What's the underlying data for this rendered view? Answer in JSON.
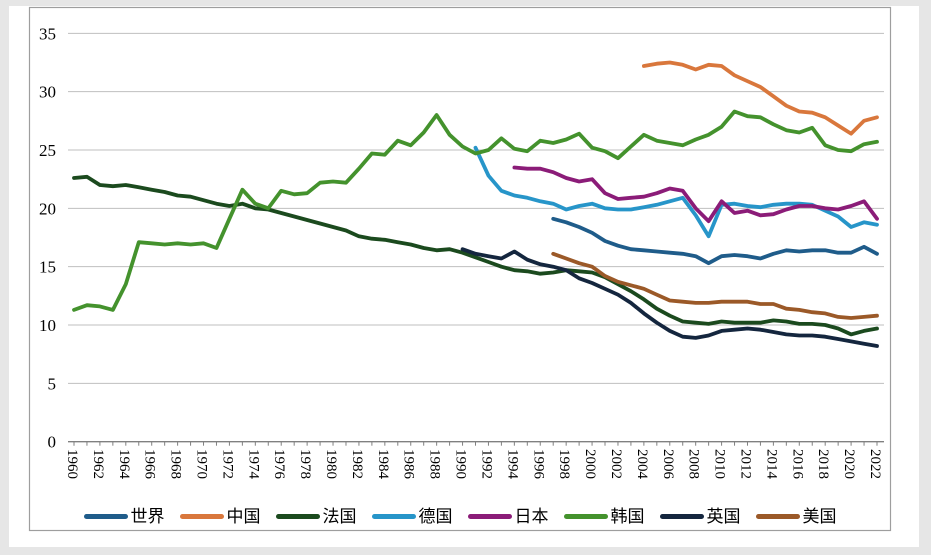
{
  "chart_data": {
    "type": "line",
    "title": "",
    "xlabel": "",
    "ylabel": "",
    "grid": true,
    "legend_position": "bottom",
    "y_axis": {
      "min": 0,
      "max": 35,
      "tick_interval": 5,
      "tick_labels": [
        0,
        5,
        10,
        15,
        20,
        25,
        30,
        35
      ]
    },
    "x_axis": {
      "min": 1960,
      "max": 2022,
      "tick_interval": 2,
      "tick_labels": [
        1960,
        1962,
        1964,
        1966,
        1968,
        1970,
        1972,
        1974,
        1976,
        1978,
        1980,
        1982,
        1984,
        1986,
        1988,
        1990,
        1992,
        1994,
        1996,
        1998,
        2000,
        2002,
        2004,
        2006,
        2008,
        2010,
        2012,
        2014,
        2016,
        2018,
        2020,
        2022
      ]
    },
    "series": [
      {
        "name": "世界",
        "name_en": "world",
        "color": "#1F5C8A",
        "start_year": 1997,
        "values": [
          19.1,
          18.8,
          18.4,
          17.9,
          17.2,
          16.8,
          16.5,
          16.4,
          16.3,
          16.2,
          16.1,
          15.9,
          15.3,
          15.9,
          16.0,
          15.9,
          15.7,
          16.1,
          16.4,
          16.3,
          16.4,
          16.4,
          16.2,
          16.2,
          16.7,
          16.1
        ]
      },
      {
        "name": "中国",
        "name_en": "china",
        "color": "#D9773C",
        "start_year": 2004,
        "values": [
          32.2,
          32.4,
          32.5,
          32.3,
          31.9,
          32.3,
          32.2,
          31.4,
          30.9,
          30.4,
          29.6,
          28.8,
          28.3,
          28.2,
          27.8,
          27.1,
          26.4,
          27.5,
          27.8
        ]
      },
      {
        "name": "法国",
        "name_en": "france",
        "color": "#1B4A1E",
        "start_year": 1960,
        "values": [
          22.6,
          22.7,
          22.0,
          21.9,
          22.0,
          21.8,
          21.6,
          21.4,
          21.1,
          21.0,
          20.7,
          20.4,
          20.2,
          20.4,
          20.0,
          19.9,
          19.6,
          19.3,
          19.0,
          18.7,
          18.4,
          18.1,
          17.6,
          17.4,
          17.3,
          17.1,
          16.9,
          16.6,
          16.4,
          16.5,
          16.2,
          15.8,
          15.4,
          15.0,
          14.7,
          14.6,
          14.4,
          14.5,
          14.7,
          14.6,
          14.5,
          14.1,
          13.5,
          12.9,
          12.2,
          11.4,
          10.8,
          10.3,
          10.2,
          10.1,
          10.3,
          10.2,
          10.2,
          10.2,
          10.4,
          10.3,
          10.1,
          10.1,
          10.0,
          9.7,
          9.2,
          9.5,
          9.7
        ]
      },
      {
        "name": "德国",
        "name_en": "germany",
        "color": "#2795C9",
        "start_year": 1991,
        "values": [
          25.2,
          22.8,
          21.5,
          21.1,
          20.9,
          20.6,
          20.4,
          19.9,
          20.2,
          20.4,
          20.0,
          19.9,
          19.9,
          20.1,
          20.3,
          20.6,
          20.9,
          19.4,
          17.6,
          20.3,
          20.4,
          20.2,
          20.1,
          20.3,
          20.4,
          20.4,
          20.3,
          19.8,
          19.3,
          18.4,
          18.8,
          18.6
        ]
      },
      {
        "name": "日本",
        "name_en": "japan",
        "color": "#8B1C78",
        "start_year": 1994,
        "values": [
          23.5,
          23.4,
          23.4,
          23.1,
          22.6,
          22.3,
          22.5,
          21.3,
          20.8,
          20.9,
          21.0,
          21.3,
          21.7,
          21.5,
          20.0,
          18.9,
          20.6,
          19.6,
          19.8,
          19.4,
          19.5,
          19.9,
          20.2,
          20.2,
          20.0,
          19.9,
          20.2,
          20.6,
          19.1
        ]
      },
      {
        "name": "韩国",
        "name_en": "korea",
        "color": "#44922D",
        "start_year": 1960,
        "values": [
          11.3,
          11.7,
          11.6,
          11.3,
          13.5,
          17.1,
          17.0,
          16.9,
          17.0,
          16.9,
          17.0,
          16.6,
          19.1,
          21.6,
          20.4,
          20.0,
          21.5,
          21.2,
          21.3,
          22.2,
          22.3,
          22.2,
          23.4,
          24.7,
          24.6,
          25.8,
          25.4,
          26.5,
          28.0,
          26.3,
          25.3,
          24.7,
          25.0,
          26.0,
          25.1,
          24.9,
          25.8,
          25.6,
          25.9,
          26.4,
          25.2,
          24.9,
          24.3,
          25.3,
          26.3,
          25.8,
          25.6,
          25.4,
          25.9,
          26.3,
          27.0,
          28.3,
          27.9,
          27.8,
          27.2,
          26.7,
          26.5,
          26.9,
          25.4,
          25.0,
          24.9,
          25.5,
          25.7
        ]
      },
      {
        "name": "英国",
        "name_en": "uk",
        "color": "#14263E",
        "start_year": 1990,
        "values": [
          16.5,
          16.1,
          15.9,
          15.7,
          16.3,
          15.6,
          15.2,
          15.0,
          14.7,
          14.0,
          13.6,
          13.1,
          12.6,
          11.9,
          11.0,
          10.2,
          9.5,
          9.0,
          8.9,
          9.1,
          9.5,
          9.6,
          9.7,
          9.6,
          9.4,
          9.2,
          9.1,
          9.1,
          9.0,
          8.8,
          8.6,
          8.4,
          8.2
        ]
      },
      {
        "name": "美国",
        "name_en": "usa",
        "color": "#9B5928",
        "start_year": 1997,
        "values": [
          16.1,
          15.7,
          15.3,
          15.0,
          14.2,
          13.7,
          13.4,
          13.1,
          12.6,
          12.1,
          12.0,
          11.9,
          11.9,
          12.0,
          12.0,
          12.0,
          11.8,
          11.8,
          11.4,
          11.3,
          11.1,
          11.0,
          10.7,
          10.6,
          10.7,
          10.8
        ]
      }
    ]
  }
}
